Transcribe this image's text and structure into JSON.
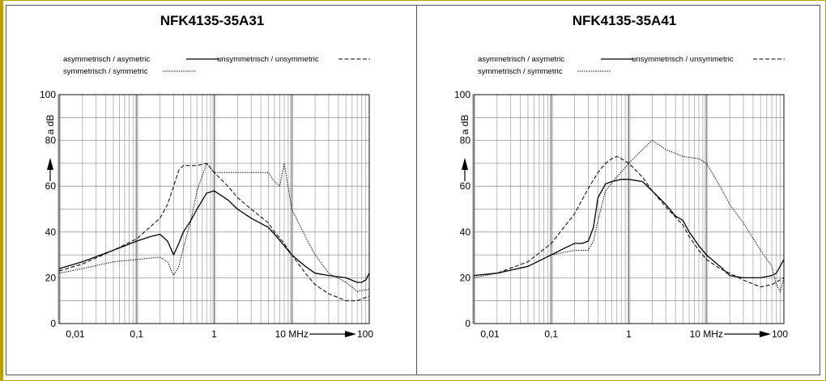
{
  "chart_data": [
    {
      "type": "line",
      "title": "NFK4135-35A31",
      "ylabel": "a dB",
      "xlabel": "",
      "x_scale": "log",
      "xlim": [
        0.01,
        100
      ],
      "ylim": [
        0,
        100
      ],
      "grid": true,
      "x_tick_labels": [
        "0,01",
        "0,1",
        "1",
        "10 MHz",
        "100"
      ],
      "x_tick_values": [
        0.01,
        0.1,
        1,
        10,
        100
      ],
      "y_tick_labels": [
        "0",
        "20",
        "40",
        "60",
        "80",
        "100"
      ],
      "y_tick_values": [
        0,
        20,
        40,
        60,
        80,
        100
      ],
      "legend": [
        {
          "name": "asymmetrisch / asymetric",
          "style": "solid"
        },
        {
          "name": "unsymmetrisch / unsymmetric",
          "style": "dashed"
        },
        {
          "name": "symmetrisch / symmetric",
          "style": "dotted"
        }
      ],
      "series": [
        {
          "name": "asymmetrisch / asymetric",
          "style": "solid",
          "x": [
            0.01,
            0.02,
            0.05,
            0.1,
            0.15,
            0.2,
            0.25,
            0.3,
            0.35,
            0.4,
            0.5,
            0.6,
            0.8,
            1,
            1.5,
            2,
            3,
            5,
            6,
            8,
            10,
            15,
            20,
            30,
            50,
            70,
            80,
            90,
            100
          ],
          "y": [
            24,
            27,
            32,
            36,
            38,
            39,
            36,
            30,
            35,
            40,
            45,
            50,
            57,
            58,
            54,
            50,
            46,
            42,
            39,
            34,
            30,
            25,
            22,
            21,
            20,
            18,
            18,
            19,
            22
          ]
        },
        {
          "name": "unsymmetrisch / unsymmetric",
          "style": "dashed",
          "x": [
            0.01,
            0.02,
            0.05,
            0.1,
            0.2,
            0.25,
            0.3,
            0.35,
            0.4,
            0.5,
            0.6,
            0.8,
            1,
            1.5,
            2,
            3,
            5,
            6,
            8,
            10,
            15,
            20,
            30,
            50,
            70,
            100
          ],
          "y": [
            23,
            26,
            32,
            37,
            46,
            52,
            60,
            67,
            69,
            69,
            69,
            70,
            66,
            60,
            55,
            50,
            44,
            40,
            35,
            30,
            22,
            17,
            13,
            10,
            10,
            12
          ]
        },
        {
          "name": "symmetrisch / symmetric",
          "style": "dotted",
          "x": [
            0.01,
            0.02,
            0.05,
            0.1,
            0.2,
            0.25,
            0.3,
            0.35,
            0.4,
            0.5,
            0.6,
            0.8,
            1,
            1.5,
            2,
            3,
            5,
            6,
            7,
            8,
            10,
            15,
            20,
            30,
            50,
            70,
            100
          ],
          "y": [
            22,
            24,
            27,
            28,
            29,
            27,
            21,
            25,
            33,
            45,
            58,
            70,
            66,
            66,
            66,
            66,
            66,
            62,
            60,
            70,
            50,
            38,
            30,
            22,
            18,
            14,
            15
          ]
        }
      ]
    },
    {
      "type": "line",
      "title": "NFK4135-35A41",
      "ylabel": "a dB",
      "xlabel": "",
      "x_scale": "log",
      "xlim": [
        0.01,
        100
      ],
      "ylim": [
        0,
        100
      ],
      "grid": true,
      "x_tick_labels": [
        "0,01",
        "0,1",
        "1",
        "10 MHz",
        "100"
      ],
      "x_tick_values": [
        0.01,
        0.1,
        1,
        10,
        100
      ],
      "y_tick_labels": [
        "0",
        "20",
        "40",
        "60",
        "80",
        "100"
      ],
      "y_tick_values": [
        0,
        20,
        40,
        60,
        80,
        100
      ],
      "legend": [
        {
          "name": "asymmetrisch / asymetric",
          "style": "solid"
        },
        {
          "name": "unsymmetrisch / unsymmetric",
          "style": "dashed"
        },
        {
          "name": "symmetrisch / symmetric",
          "style": "dotted"
        }
      ],
      "series": [
        {
          "name": "asymmetrisch / asymetric",
          "style": "solid",
          "x": [
            0.01,
            0.02,
            0.05,
            0.1,
            0.15,
            0.2,
            0.25,
            0.3,
            0.35,
            0.4,
            0.5,
            0.6,
            0.8,
            1,
            1.5,
            2,
            3,
            4,
            5,
            6,
            8,
            10,
            15,
            20,
            30,
            50,
            70,
            80,
            100
          ],
          "y": [
            21,
            22,
            25,
            30,
            33,
            35,
            35,
            36,
            42,
            55,
            61,
            62,
            63,
            63,
            62,
            58,
            52,
            47,
            45,
            40,
            34,
            30,
            25,
            21,
            20,
            20,
            21,
            22,
            28
          ]
        },
        {
          "name": "unsymmetrisch / unsymmetric",
          "style": "dashed",
          "x": [
            0.01,
            0.02,
            0.05,
            0.1,
            0.2,
            0.3,
            0.4,
            0.5,
            0.6,
            0.7,
            0.8,
            1,
            1.5,
            2,
            3,
            5,
            6,
            8,
            10,
            15,
            20,
            30,
            50,
            70,
            100
          ],
          "y": [
            21,
            22,
            27,
            35,
            48,
            59,
            66,
            70,
            72,
            73,
            72,
            70,
            64,
            58,
            51,
            43,
            38,
            32,
            28,
            24,
            22,
            19,
            16,
            17,
            20
          ]
        },
        {
          "name": "symmetrisch / symmetric",
          "style": "dotted",
          "x": [
            0.01,
            0.02,
            0.05,
            0.1,
            0.2,
            0.3,
            0.35,
            0.4,
            0.5,
            0.7,
            1,
            1.5,
            2,
            3,
            5,
            8,
            10,
            15,
            20,
            30,
            50,
            70,
            80,
            90,
            100
          ],
          "y": [
            20,
            22,
            25,
            30,
            32,
            32,
            36,
            45,
            58,
            64,
            70,
            76,
            80,
            76,
            73,
            72,
            70,
            60,
            52,
            44,
            32,
            25,
            17,
            14,
            20
          ]
        }
      ]
    }
  ]
}
